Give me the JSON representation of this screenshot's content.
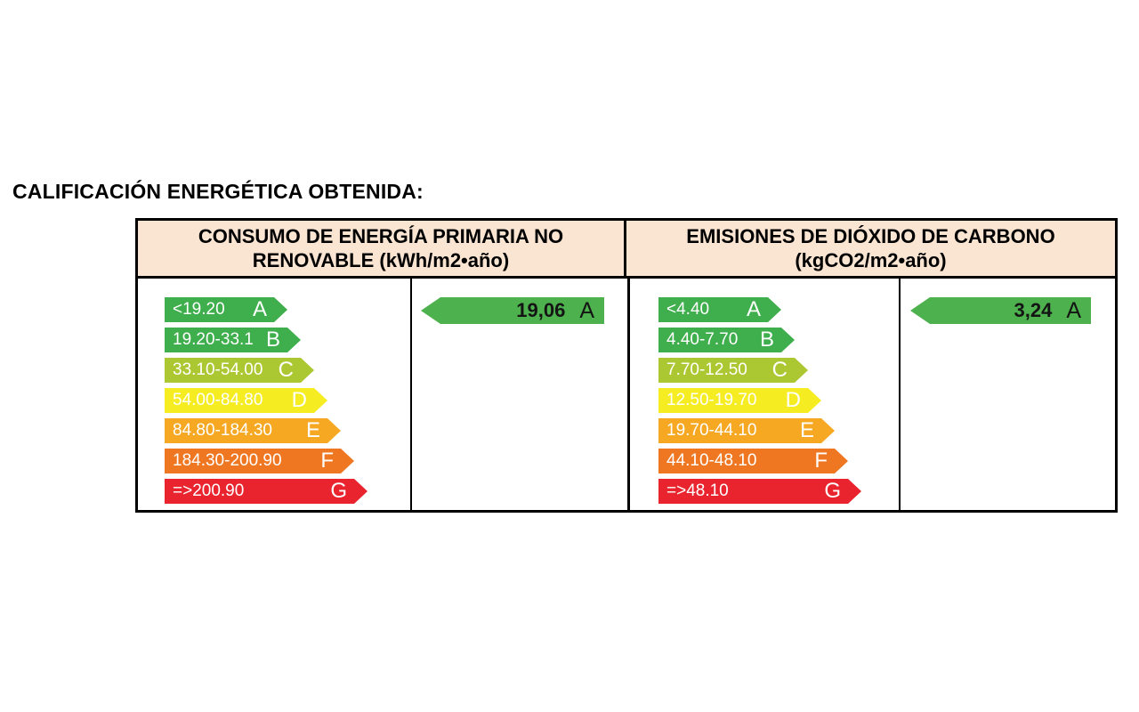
{
  "title": "CALIFICACIÓN ENERGÉTICA OBTENIDA:",
  "colors": {
    "header_bg": "#FAE4D2",
    "table_border": "#000000",
    "result_arrow_green": "#4DB14D",
    "result_text": "#141414",
    "bar_text": "#FFFFFF"
  },
  "columns": [
    {
      "header": "CONSUMO  DE ENERGÍA PRIMARIA NO RENOVABLE (kWh/m2•año)",
      "result": {
        "value": "19,06",
        "letter": "A"
      },
      "scale": [
        {
          "range": "<19.20",
          "letter": "A",
          "color": "#3FAE4C"
        },
        {
          "range": "19.20-33.1",
          "letter": "B",
          "color": "#3FAE4C"
        },
        {
          "range": "33.10-54.00",
          "letter": "C",
          "color": "#ABC832"
        },
        {
          "range": "54.00-84.80",
          "letter": "D",
          "color": "#F6EC22"
        },
        {
          "range": "84.80-184.30",
          "letter": "E",
          "color": "#F6A823"
        },
        {
          "range": "184.30-200.90",
          "letter": "F",
          "color": "#EF7722"
        },
        {
          "range": "=>200.90",
          "letter": "G",
          "color": "#E9242E"
        }
      ]
    },
    {
      "header": "EMISIONES DE DIÓXIDO DE CARBONO (kgCO2/m2•año)",
      "result": {
        "value": "3,24",
        "letter": "A"
      },
      "scale": [
        {
          "range": "<4.40",
          "letter": "A",
          "color": "#3FAE4C"
        },
        {
          "range": "4.40-7.70",
          "letter": "B",
          "color": "#3FAE4C"
        },
        {
          "range": "7.70-12.50",
          "letter": "C",
          "color": "#ABC832"
        },
        {
          "range": "12.50-19.70",
          "letter": "D",
          "color": "#F6EC22"
        },
        {
          "range": "19.70-44.10",
          "letter": "E",
          "color": "#F6A823"
        },
        {
          "range": "44.10-48.10",
          "letter": "F",
          "color": "#EF7722"
        },
        {
          "range": "=>48.10",
          "letter": "G",
          "color": "#E9242E"
        }
      ]
    }
  ]
}
